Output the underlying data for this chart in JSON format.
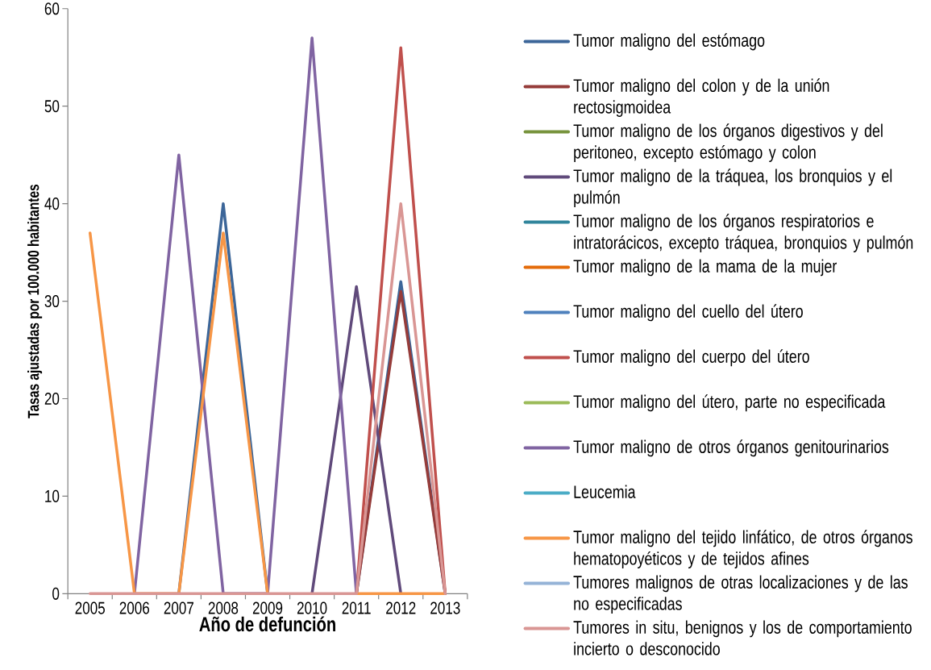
{
  "chart_data": {
    "type": "line",
    "xlabel": "Año de defunción",
    "ylabel": "Tasas ajustadas por 100.000 habitantes",
    "categories": [
      "2005",
      "2006",
      "2007",
      "2008",
      "2009",
      "2010",
      "2011",
      "2012",
      "2013"
    ],
    "ylim": [
      0,
      60
    ],
    "yticks": [
      0,
      10,
      20,
      30,
      40,
      50,
      60
    ],
    "legend": "right",
    "series": [
      {
        "name": "Tumor maligno del estómago",
        "color": "#3c6699",
        "values": [
          null,
          null,
          0,
          40,
          0,
          null,
          0,
          32,
          0
        ]
      },
      {
        "name": "Tumor maligno del colon y de la unión rectosigmoidea",
        "color": "#963c3a",
        "values": [
          null,
          null,
          null,
          null,
          null,
          null,
          0,
          31,
          0
        ]
      },
      {
        "name": "Tumor maligno de los órganos digestivos y del peritoneo, excepto estómago y colon",
        "color": "#77933c",
        "values": [
          null,
          null,
          null,
          null,
          null,
          null,
          null,
          null,
          null
        ]
      },
      {
        "name": "Tumor maligno de la tráquea, los bronquios y el pulmón",
        "color": "#604a7b",
        "values": [
          null,
          null,
          null,
          null,
          null,
          0,
          31.5,
          0,
          null
        ]
      },
      {
        "name": "Tumor maligno de los órganos respiratorios e intratorácicos, excepto tráquea, bronquios y pulmón",
        "color": "#31859c",
        "values": [
          null,
          null,
          null,
          null,
          null,
          null,
          null,
          null,
          null
        ]
      },
      {
        "name": "Tumor maligno de la mama de la mujer",
        "color": "#e46c0a",
        "values": [
          null,
          null,
          null,
          null,
          null,
          null,
          null,
          null,
          null
        ]
      },
      {
        "name": "Tumor maligno del cuello del útero",
        "color": "#4f81bd",
        "values": [
          null,
          null,
          null,
          null,
          null,
          null,
          null,
          null,
          null
        ]
      },
      {
        "name": "Tumor maligno del cuerpo del útero",
        "color": "#c0504d",
        "values": [
          null,
          null,
          null,
          null,
          null,
          null,
          0,
          56,
          0
        ]
      },
      {
        "name": "Tumor maligno del útero, parte no especificada",
        "color": "#9bbb59",
        "values": [
          null,
          null,
          null,
          null,
          null,
          null,
          null,
          null,
          null
        ]
      },
      {
        "name": "Tumor maligno de otros órganos genitourinarios",
        "color": "#8064a2",
        "values": [
          null,
          0,
          45,
          0,
          0,
          57,
          0,
          null,
          null
        ]
      },
      {
        "name": "Leucemia",
        "color": "#4bacc6",
        "values": [
          null,
          null,
          null,
          null,
          null,
          null,
          null,
          null,
          null
        ]
      },
      {
        "name": "Tumor maligno del tejido linfático, de otros órganos hematopoyéticos y de tejidos afines",
        "color": "#f79646",
        "values": [
          37,
          0,
          0,
          37,
          0,
          null,
          0,
          0,
          0
        ]
      },
      {
        "name": "Tumores malignos de otras localizaciones y de las no especificadas",
        "color": "#95b3d7",
        "values": [
          null,
          null,
          null,
          null,
          null,
          null,
          null,
          null,
          null
        ]
      },
      {
        "name": "Tumores in situ, benignos y los de comportamiento incierto o desconocido",
        "color": "#d99694",
        "values": [
          0,
          0,
          0,
          0,
          0,
          0,
          0,
          40,
          0
        ]
      }
    ]
  }
}
